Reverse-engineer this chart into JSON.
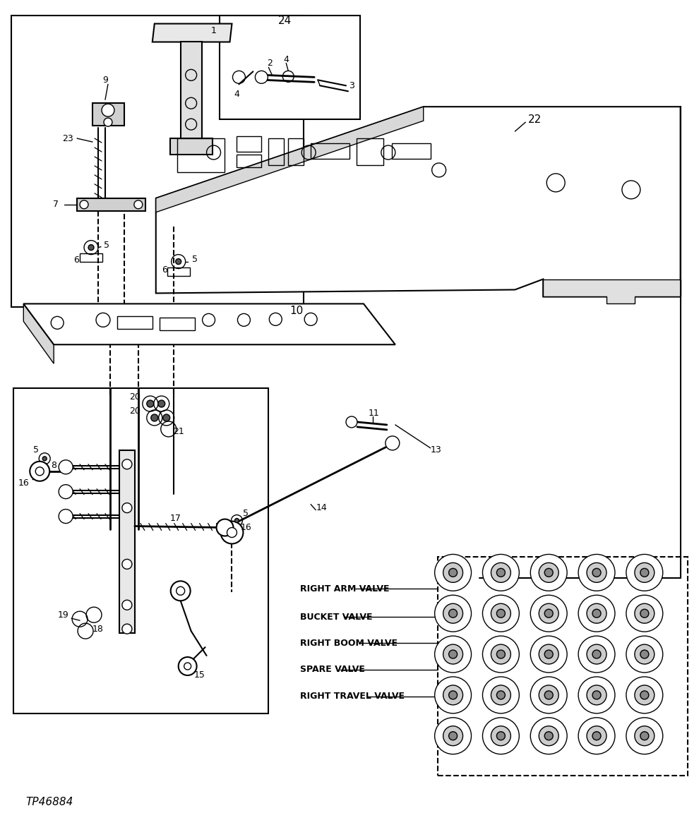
{
  "bg_color": "#ffffff",
  "footer_text": "TP46884",
  "valve_labels": [
    "RIGHT ARM VALVE",
    "BUCKET VALVE",
    "RIGHT BOOM VALVE",
    "SPARE VALVE",
    "RIGHT TRAVEL VALVE"
  ]
}
